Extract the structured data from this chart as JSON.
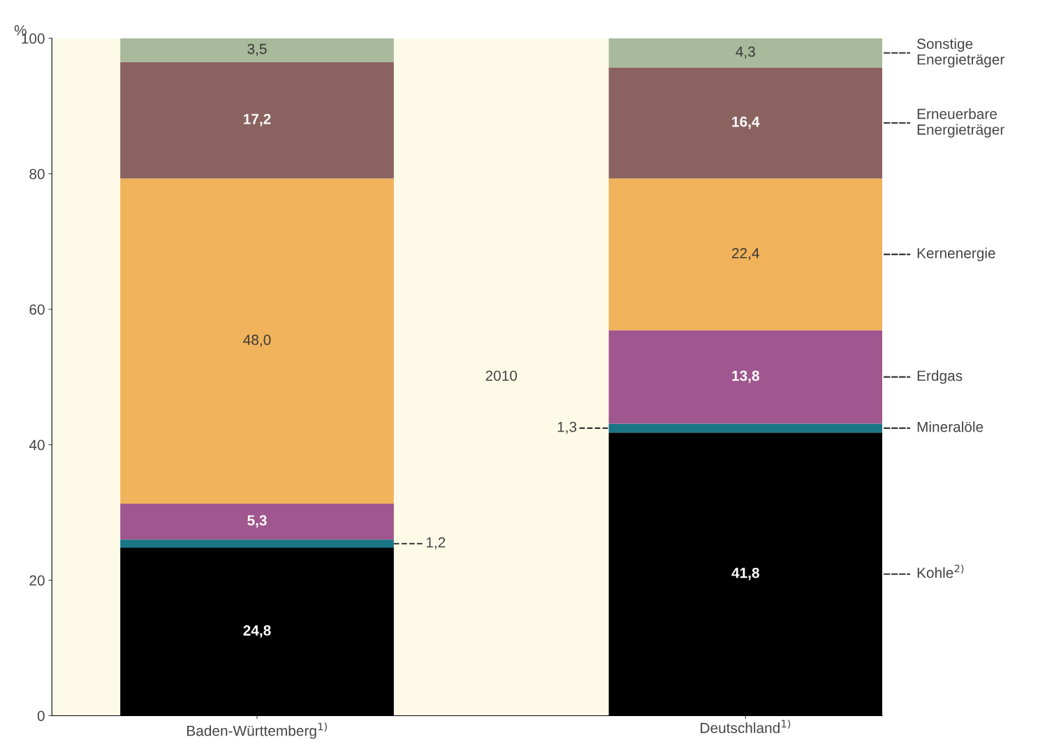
{
  "chart_data": {
    "type": "bar",
    "stacked": true,
    "ylabel": "%",
    "categories": [
      "Baden-Württemberg$^{1)}$",
      "Deutschland$^{1)}$"
    ],
    "series": [
      {
        "name": "Kohle$^{2)}$",
        "color": "#000000",
        "values": [
          24.8,
          41.8
        ],
        "value_labels": [
          "24,8",
          "41,8"
        ]
      },
      {
        "name": "Mineralöle",
        "color": "#1a7585",
        "values": [
          1.2,
          1.3
        ],
        "value_labels": [
          "1,2",
          "1,3"
        ]
      },
      {
        "name": "Erdgas",
        "color": "#a0568e",
        "values": [
          5.3,
          13.8
        ],
        "value_labels": [
          "5,3",
          "13,8"
        ]
      },
      {
        "name": "Kernenergie",
        "color": "#f0b25a",
        "values": [
          48.0,
          22.4
        ],
        "value_labels": [
          "48,0",
          "22,4"
        ]
      },
      {
        "name": "Erneuerbare Energieträger",
        "color": "#8a6260",
        "values": [
          17.2,
          16.4
        ],
        "value_labels": [
          "17,2",
          "16,4"
        ]
      },
      {
        "name": "Sonstige Energieträger",
        "color": "#a9b99b",
        "values": [
          3.5,
          4.3
        ],
        "value_labels": [
          "3,5",
          "4,3"
        ]
      }
    ],
    "annotations": [
      "2010"
    ],
    "ylim": [
      0,
      100
    ],
    "yticks": [
      0,
      20,
      40,
      60,
      80,
      100
    ],
    "grid": false,
    "legend": false
  }
}
